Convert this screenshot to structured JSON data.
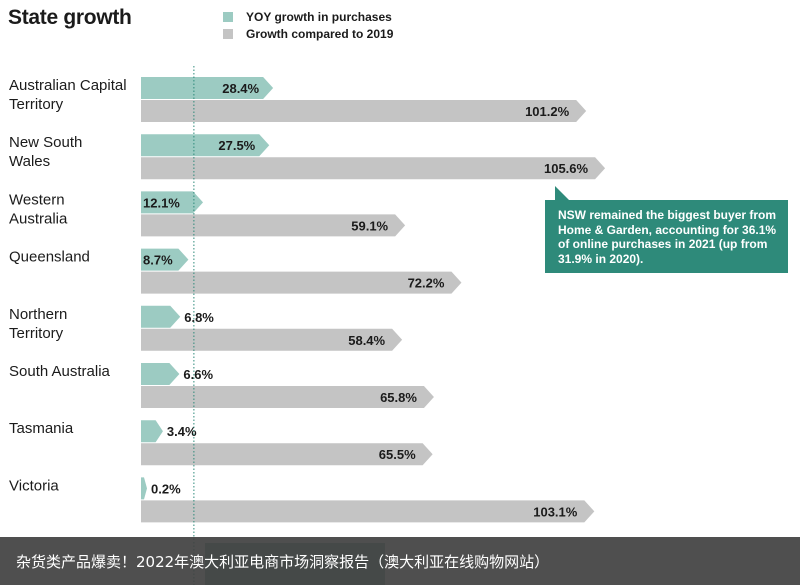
{
  "chart_data": {
    "type": "bar",
    "title": "State growth",
    "legend": [
      {
        "name": "YOY growth in purchases",
        "color": "#9ccbc2"
      },
      {
        "name": "Growth compared to 2019",
        "color": "#c4c4c4"
      }
    ],
    "legend_placement": "top",
    "categories": [
      [
        "Australian Capital",
        "Territory"
      ],
      [
        "New South",
        "Wales"
      ],
      [
        "Western",
        "Australia"
      ],
      [
        "Queensland"
      ],
      [
        "Northern",
        "Territory"
      ],
      [
        "South Australia"
      ],
      [
        "Tasmania"
      ],
      [
        "Victoria"
      ]
    ],
    "series": [
      {
        "name": "YOY growth in purchases",
        "values": [
          28.4,
          27.5,
          12.1,
          8.7,
          6.8,
          6.6,
          3.4,
          0.2
        ]
      },
      {
        "name": "Growth compared to 2019",
        "values": [
          101.2,
          105.6,
          59.1,
          72.2,
          58.4,
          65.8,
          65.5,
          103.1
        ]
      }
    ],
    "value_suffix": "%",
    "xlim": [
      0,
      110
    ],
    "reference_line_value": 12.3,
    "annotation": "NSW remained the biggest buyer from Home & Garden, accounting for 36.1% of online purchases in 2021 (up from 31.9% in 2020).",
    "colors": {
      "yoy": "#9ccbc2",
      "g19": "#c4c4c4",
      "callout": "#2e8a7a",
      "reference": "#2e8a7a"
    }
  },
  "footer": {
    "caption": "杂货类产品爆卖！2022年澳大利亚电商市场洞察报告（澳大利亚在线购物网站）"
  }
}
